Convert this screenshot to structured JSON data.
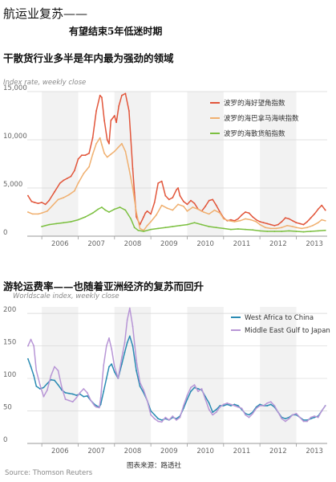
{
  "header": {
    "title": "航运业复苏——",
    "subtitle": "有望结束5年低迷时期"
  },
  "colors": {
    "capesize": "#e2563b",
    "panamax": "#f0b070",
    "bdi": "#7cc040",
    "west_africa": "#2a8bb3",
    "middle_east": "#b896d6",
    "grid": "#d6d6d6",
    "band": "#f2f2f2"
  },
  "footer": {
    "source": "Source: Thomson Reuters",
    "credit": "图表来源：路透社"
  },
  "chart_data": [
    {
      "id": "dry_bulk",
      "type": "line",
      "heading": "干散货行业多半是年内最为强劲的领域",
      "ylabel": "Index rate, weekly close",
      "ylim": [
        0,
        15000
      ],
      "yticks": [
        0,
        5000,
        10000,
        15000
      ],
      "ytick_labels": [
        "0",
        "5,000",
        "10,000",
        "15,000"
      ],
      "xlim": [
        2005.6,
        2013.85
      ],
      "xticks": [
        2006,
        2007,
        2008,
        2009,
        2010,
        2011,
        2012,
        2013
      ],
      "xtick_labels": [
        "2006",
        "2007",
        "2008",
        "2009",
        "2010",
        "2011",
        "2012",
        "2013"
      ],
      "legend_position": "top-right",
      "grid": true,
      "series": [
        {
          "name": "波罗的海好望角指数",
          "color_key": "capesize",
          "x": [
            2005.62,
            2005.72,
            2005.8,
            2005.9,
            2006.0,
            2006.1,
            2006.2,
            2006.35,
            2006.5,
            2006.6,
            2006.7,
            2006.8,
            2006.9,
            2007.0,
            2007.1,
            2007.2,
            2007.3,
            2007.4,
            2007.5,
            2007.6,
            2007.65,
            2007.72,
            2007.8,
            2007.85,
            2007.9,
            2008.0,
            2008.05,
            2008.12,
            2008.2,
            2008.3,
            2008.4,
            2008.45,
            2008.5,
            2008.55,
            2008.6,
            2008.7,
            2008.8,
            2008.85,
            2008.9,
            2009.0,
            2009.1,
            2009.2,
            2009.3,
            2009.4,
            2009.5,
            2009.6,
            2009.7,
            2009.75,
            2009.8,
            2009.9,
            2010.0,
            2010.1,
            2010.2,
            2010.3,
            2010.4,
            2010.5,
            2010.6,
            2010.7,
            2010.8,
            2010.9,
            2011.0,
            2011.1,
            2011.2,
            2011.3,
            2011.4,
            2011.5,
            2011.6,
            2011.7,
            2011.8,
            2011.9,
            2012.0,
            2012.1,
            2012.2,
            2012.3,
            2012.4,
            2012.5,
            2012.6,
            2012.7,
            2012.8,
            2012.9,
            2013.0,
            2013.1,
            2013.2,
            2013.3,
            2013.4,
            2013.5,
            2013.6,
            2013.7,
            2013.8
          ],
          "y": [
            4200,
            3600,
            3500,
            3400,
            3500,
            3300,
            3700,
            4600,
            5500,
            5800,
            6000,
            6200,
            6800,
            8000,
            8400,
            8400,
            8600,
            10200,
            13000,
            14600,
            14400,
            12000,
            10000,
            9600,
            12000,
            12500,
            11800,
            13500,
            14600,
            14800,
            13000,
            10000,
            7000,
            4500,
            2000,
            1200,
            2000,
            2400,
            2600,
            2300,
            3500,
            5500,
            5700,
            4200,
            3800,
            4000,
            4800,
            5000,
            4200,
            3600,
            3300,
            3700,
            3400,
            2800,
            2600,
            3100,
            3700,
            3800,
            3200,
            2500,
            1900,
            1600,
            1700,
            1600,
            1800,
            2200,
            2500,
            2400,
            2000,
            1700,
            1500,
            1400,
            1300,
            1200,
            1100,
            1200,
            1500,
            1900,
            1800,
            1600,
            1400,
            1300,
            1200,
            1500,
            1900,
            2300,
            2800,
            3200,
            2700
          ]
        },
        {
          "name": "波罗的海巴拿马海峡指数",
          "color_key": "panamax",
          "x": [
            2005.62,
            2005.75,
            2005.9,
            2006.0,
            2006.15,
            2006.3,
            2006.45,
            2006.6,
            2006.75,
            2006.9,
            2007.0,
            2007.15,
            2007.3,
            2007.4,
            2007.5,
            2007.6,
            2007.65,
            2007.72,
            2007.8,
            2007.9,
            2008.0,
            2008.1,
            2008.2,
            2008.3,
            2008.4,
            2008.5,
            2008.6,
            2008.7,
            2008.8,
            2008.9,
            2009.0,
            2009.15,
            2009.3,
            2009.45,
            2009.6,
            2009.75,
            2009.9,
            2010.0,
            2010.15,
            2010.3,
            2010.45,
            2010.6,
            2010.75,
            2010.9,
            2011.0,
            2011.15,
            2011.3,
            2011.45,
            2011.6,
            2011.75,
            2011.9,
            2012.0,
            2012.15,
            2012.3,
            2012.45,
            2012.6,
            2012.75,
            2012.9,
            2013.0,
            2013.15,
            2013.3,
            2013.45,
            2013.6,
            2013.7,
            2013.8
          ],
          "y": [
            2500,
            2300,
            2300,
            2400,
            2600,
            3200,
            3800,
            4000,
            4300,
            4700,
            5500,
            6500,
            7200,
            8500,
            9600,
            10200,
            9500,
            8600,
            8200,
            8500,
            8800,
            9200,
            9600,
            8800,
            7000,
            5000,
            2500,
            800,
            600,
            1100,
            1500,
            2200,
            3200,
            2900,
            2700,
            3300,
            3100,
            2600,
            3000,
            2800,
            2500,
            2300,
            2700,
            2400,
            1800,
            1600,
            1500,
            1600,
            1800,
            1700,
            1500,
            1200,
            900,
            800,
            800,
            900,
            1100,
            1000,
            900,
            800,
            900,
            1100,
            1400,
            1700,
            1600
          ]
        },
        {
          "name": "波罗的海散货船指数",
          "color_key": "bdi",
          "x": [
            2006.0,
            2006.2,
            2006.4,
            2006.6,
            2006.8,
            2007.0,
            2007.2,
            2007.4,
            2007.55,
            2007.65,
            2007.75,
            2007.85,
            2008.0,
            2008.15,
            2008.3,
            2008.45,
            2008.55,
            2008.65,
            2008.8,
            2009.0,
            2009.2,
            2009.4,
            2009.6,
            2009.8,
            2010.0,
            2010.2,
            2010.4,
            2010.6,
            2010.8,
            2011.0,
            2011.2,
            2011.4,
            2011.6,
            2011.8,
            2012.0,
            2012.2,
            2012.4,
            2012.6,
            2012.8,
            2013.0,
            2013.2,
            2013.4,
            2013.6,
            2013.8
          ],
          "y": [
            1000,
            1200,
            1300,
            1400,
            1500,
            1700,
            2000,
            2400,
            2800,
            3000,
            2700,
            2500,
            2800,
            3000,
            2700,
            1800,
            900,
            600,
            500,
            700,
            800,
            900,
            1000,
            1100,
            1200,
            1400,
            1200,
            1000,
            900,
            800,
            700,
            750,
            700,
            650,
            550,
            500,
            500,
            500,
            550,
            500,
            450,
            500,
            550,
            600
          ]
        }
      ]
    },
    {
      "id": "tanker",
      "type": "line",
      "heading": "游轮运费率——也随着亚洲经济的复苏而回升",
      "ylabel": "Worldscale index, weekly close",
      "ylim": [
        0,
        210
      ],
      "yticks": [
        0,
        50,
        100,
        150,
        200
      ],
      "ytick_labels": [
        "0",
        "50",
        "100",
        "150",
        "200"
      ],
      "xlim": [
        2005.6,
        2013.85
      ],
      "xticks": [
        2006,
        2007,
        2008,
        2009,
        2010,
        2011,
        2012,
        2013
      ],
      "xtick_labels": [
        "2006",
        "2007",
        "2008",
        "2009",
        "2010",
        "2011",
        "2012",
        "2013"
      ],
      "legend_position": "top-right",
      "grid": true,
      "series": [
        {
          "name": "West Africa to China",
          "color_key": "west_africa",
          "x": [
            2005.62,
            2005.7,
            2005.78,
            2005.85,
            2005.95,
            2006.05,
            2006.15,
            2006.25,
            2006.35,
            2006.45,
            2006.55,
            2006.65,
            2006.75,
            2006.85,
            2006.95,
            2007.05,
            2007.15,
            2007.25,
            2007.35,
            2007.45,
            2007.5,
            2007.58,
            2007.62,
            2007.7,
            2007.78,
            2007.85,
            2007.92,
            2008.0,
            2008.1,
            2008.2,
            2008.28,
            2008.35,
            2008.42,
            2008.5,
            2008.6,
            2008.7,
            2008.8,
            2008.9,
            2009.0,
            2009.1,
            2009.2,
            2009.3,
            2009.4,
            2009.5,
            2009.6,
            2009.7,
            2009.8,
            2009.9,
            2010.0,
            2010.1,
            2010.2,
            2010.3,
            2010.4,
            2010.5,
            2010.6,
            2010.7,
            2010.8,
            2010.9,
            2011.0,
            2011.1,
            2011.2,
            2011.3,
            2011.4,
            2011.5,
            2011.6,
            2011.7,
            2011.8,
            2011.9,
            2012.0,
            2012.1,
            2012.2,
            2012.3,
            2012.4,
            2012.5,
            2012.6,
            2012.7,
            2012.8,
            2012.9,
            2013.0,
            2013.1,
            2013.2,
            2013.3,
            2013.4,
            2013.5,
            2013.6,
            2013.7,
            2013.8
          ],
          "y": [
            130,
            118,
            104,
            88,
            84,
            86,
            92,
            98,
            97,
            90,
            82,
            78,
            77,
            76,
            74,
            76,
            72,
            73,
            66,
            60,
            58,
            56,
            60,
            80,
            100,
            118,
            122,
            110,
            100,
            122,
            140,
            155,
            165,
            150,
            112,
            88,
            78,
            66,
            50,
            44,
            38,
            36,
            38,
            36,
            40,
            38,
            42,
            54,
            68,
            80,
            86,
            84,
            82,
            72,
            62,
            48,
            52,
            58,
            58,
            60,
            58,
            60,
            58,
            52,
            46,
            44,
            48,
            56,
            60,
            58,
            58,
            60,
            56,
            48,
            40,
            38,
            40,
            44,
            44,
            40,
            36,
            36,
            38,
            40,
            42,
            50,
            58
          ]
        },
        {
          "name": "Middle East Gulf to Japan",
          "color_key": "middle_east",
          "x": [
            2005.62,
            2005.7,
            2005.78,
            2005.85,
            2005.95,
            2006.05,
            2006.15,
            2006.25,
            2006.35,
            2006.45,
            2006.55,
            2006.65,
            2006.75,
            2006.85,
            2006.95,
            2007.05,
            2007.15,
            2007.25,
            2007.35,
            2007.45,
            2007.5,
            2007.58,
            2007.62,
            2007.7,
            2007.78,
            2007.85,
            2007.92,
            2008.0,
            2008.1,
            2008.2,
            2008.28,
            2008.35,
            2008.42,
            2008.5,
            2008.6,
            2008.7,
            2008.8,
            2008.9,
            2009.0,
            2009.1,
            2009.2,
            2009.3,
            2009.4,
            2009.5,
            2009.6,
            2009.7,
            2009.8,
            2009.9,
            2010.0,
            2010.1,
            2010.2,
            2010.3,
            2010.4,
            2010.5,
            2010.6,
            2010.7,
            2010.8,
            2010.9,
            2011.0,
            2011.1,
            2011.2,
            2011.3,
            2011.4,
            2011.5,
            2011.6,
            2011.7,
            2011.8,
            2011.9,
            2012.0,
            2012.1,
            2012.2,
            2012.3,
            2012.4,
            2012.5,
            2012.6,
            2012.7,
            2012.8,
            2012.9,
            2013.0,
            2013.1,
            2013.2,
            2013.3,
            2013.4,
            2013.5,
            2013.6,
            2013.7,
            2013.8
          ],
          "y": [
            150,
            160,
            150,
            112,
            90,
            72,
            82,
            104,
            118,
            112,
            86,
            68,
            66,
            64,
            70,
            78,
            84,
            78,
            66,
            58,
            56,
            55,
            70,
            120,
            150,
            162,
            145,
            118,
            100,
            132,
            155,
            190,
            208,
            180,
            128,
            94,
            82,
            66,
            44,
            38,
            34,
            33,
            40,
            36,
            42,
            36,
            40,
            58,
            74,
            86,
            90,
            80,
            84,
            68,
            52,
            44,
            48,
            56,
            60,
            62,
            60,
            58,
            56,
            54,
            44,
            40,
            46,
            54,
            58,
            58,
            62,
            64,
            58,
            48,
            38,
            34,
            38,
            44,
            46,
            40,
            34,
            34,
            40,
            42,
            40,
            50,
            58
          ]
        }
      ]
    }
  ]
}
